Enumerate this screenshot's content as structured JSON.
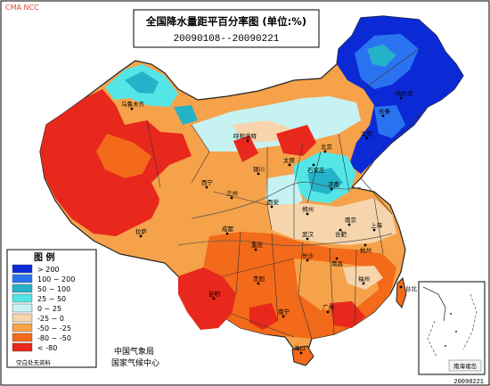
{
  "top_left_label": "CMA NCC",
  "title": {
    "line1": "全国降水量距平百分率图 (单位:%)",
    "line2": "20090108--20090221"
  },
  "legend": {
    "title": "图 例",
    "items": [
      {
        "label": "> 200",
        "color": "#0b2ad6"
      },
      {
        "label": "100 ~ 200",
        "color": "#2a73f0"
      },
      {
        "label": "50 ~ 100",
        "color": "#24b2c8"
      },
      {
        "label": "25 ~ 50",
        "color": "#54e6e6"
      },
      {
        "label": "0 ~ 25",
        "color": "#c7f2f2"
      },
      {
        "label": "-25 ~ 0",
        "color": "#f6d5ac"
      },
      {
        "label": "-50 ~ -25",
        "color": "#f5a24a"
      },
      {
        "label": "-80 ~ -50",
        "color": "#f26a1a"
      },
      {
        "label": "< -80",
        "color": "#e8281c"
      }
    ],
    "footnote": "空白处无资料"
  },
  "agency": {
    "line1": "中国气象局",
    "line2": "国家气候中心"
  },
  "inset_label": "南海诸岛",
  "bottom_date": "20090221",
  "city_labels": [
    "乌鲁木齐",
    "呼和浩特",
    "太原",
    "石家庄",
    "北京",
    "沈阳",
    "哈尔滨",
    "长春",
    "西宁",
    "兰州",
    "银川",
    "郑州",
    "济南",
    "西安",
    "拉萨",
    "成都",
    "重庆",
    "武汉",
    "南京",
    "上海",
    "合肥",
    "杭州",
    "长沙",
    "南昌",
    "福州",
    "贵阳",
    "昆明",
    "南宁",
    "广州",
    "台北",
    "海口"
  ]
}
